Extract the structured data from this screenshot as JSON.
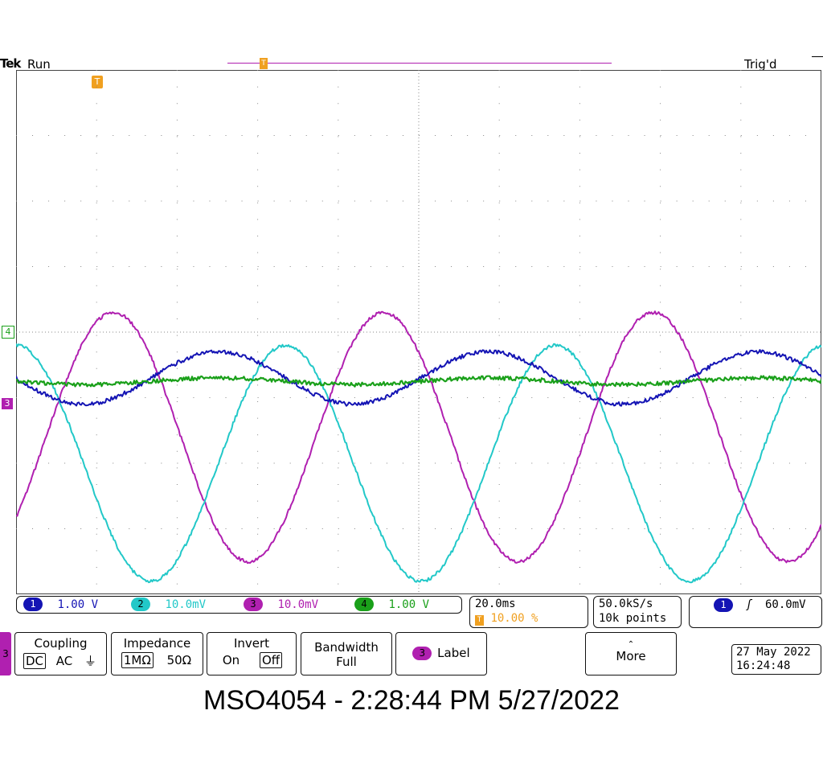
{
  "header": {
    "brand": "Tek",
    "state": "Run",
    "trigger_status": "Trig'd"
  },
  "colors": {
    "ch1": "#1414b4",
    "ch2": "#22c8c8",
    "ch3": "#b020b0",
    "ch4": "#1aa01a",
    "trigger": "#f0a020",
    "record_bar": "#b020b0"
  },
  "markers": {
    "trigger_pos": "T",
    "ch4": "4",
    "ch3": "3"
  },
  "channels": [
    {
      "num": "1",
      "scale": "1.00 V"
    },
    {
      "num": "2",
      "scale": "10.0mV"
    },
    {
      "num": "3",
      "scale": "10.0mV"
    },
    {
      "num": "4",
      "scale": "1.00 V"
    }
  ],
  "timebase": {
    "scale": "20.0ms",
    "trigger_pos_label": "10.00 %",
    "sample_rate": "50.0kS/s",
    "record": "10k points"
  },
  "trigger": {
    "source": "1",
    "slope": "ʃ",
    "level": "60.0mV"
  },
  "menu": {
    "channel": "3",
    "coupling": {
      "title": "Coupling",
      "options": [
        "DC",
        "AC",
        "⏚"
      ],
      "selected": "DC"
    },
    "impedance": {
      "title": "Impedance",
      "options": [
        "1MΩ",
        "50Ω"
      ],
      "selected": "1MΩ"
    },
    "invert": {
      "title": "Invert",
      "options": [
        "On",
        "Off"
      ],
      "selected": "Off"
    },
    "bandwidth": {
      "title": "Bandwidth",
      "value": "Full"
    },
    "label": {
      "badge": "3",
      "text": "Label"
    },
    "more": {
      "text": "More"
    }
  },
  "clock": {
    "date": "27 May 2022",
    "time": "16:24:48"
  },
  "caption": "MSO4054 - 2:28:44 PM   5/27/2022",
  "chart_data": {
    "type": "line",
    "title": "",
    "xlabel": "",
    "ylabel": "",
    "x_divisions": 10,
    "y_divisions": 8,
    "grid": true,
    "period_divisions": 3.35,
    "series": [
      {
        "name": "1",
        "amplitude_div": 0.4,
        "offset_div": 4.7,
        "phase_deg": 180
      },
      {
        "name": "2",
        "amplitude_div": 1.8,
        "offset_div": 6.0,
        "phase_deg": 90
      },
      {
        "name": "3",
        "amplitude_div": 1.9,
        "offset_div": 5.6,
        "phase_deg": -40
      },
      {
        "name": "4",
        "amplitude_div": 0.05,
        "offset_div": 4.75,
        "phase_deg": 180
      }
    ]
  }
}
